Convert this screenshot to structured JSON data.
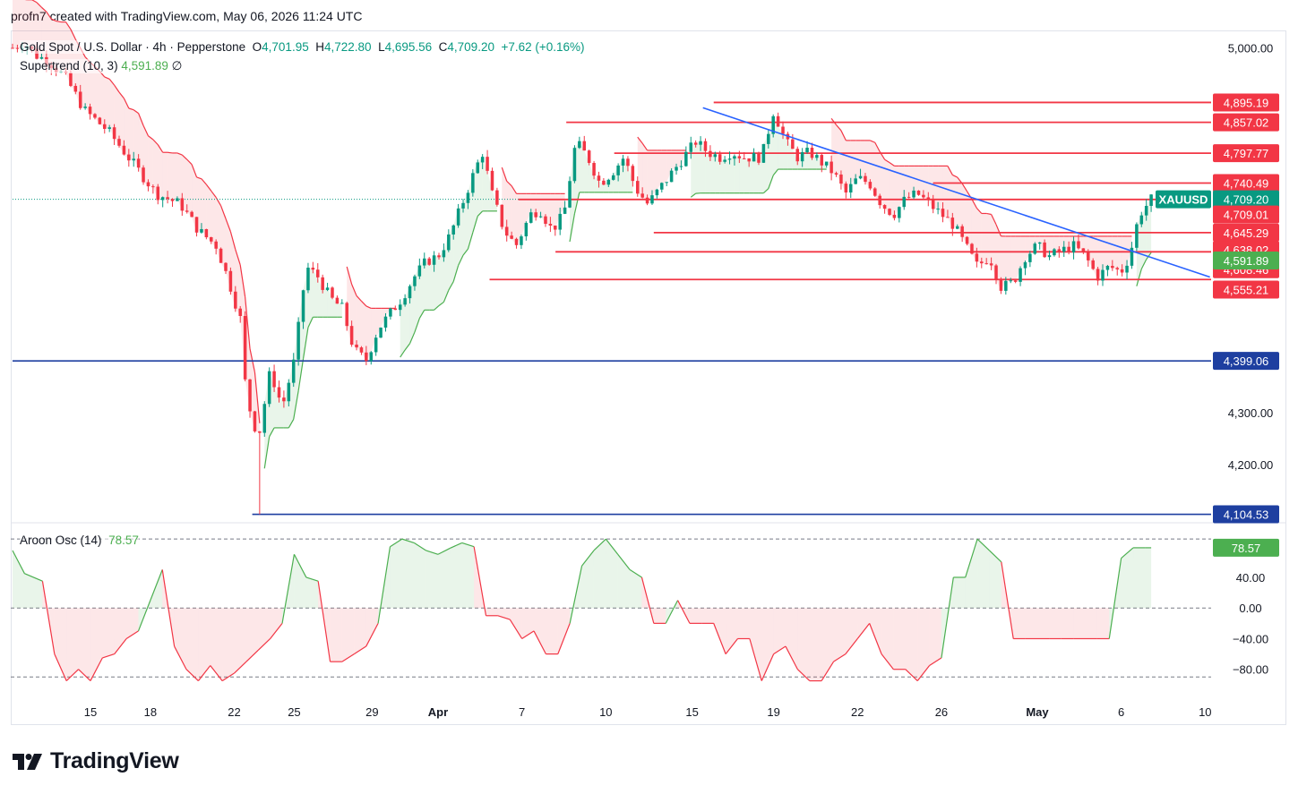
{
  "credit_line": "profn7 created with TradingView.com, May 06, 2026 11:24 UTC",
  "brand": "TradingView",
  "colors": {
    "up": "#089981",
    "down": "#f23645",
    "trendline": "#2962ff",
    "level_red": "#f23645",
    "level_blue": "#1e3fa0",
    "supertrend_up": "#4caf50",
    "supertrend_down": "#f23645",
    "aroon_pos": "#4caf50",
    "aroon_neg": "#f23645"
  },
  "chart_data": [
    {
      "type": "candlestick",
      "symbol_line": {
        "symbol": "Gold Spot / U.S. Dollar · 4h · Pepperstone",
        "o_label": "O",
        "o": "4,701.95",
        "h_label": "H",
        "h": "4,722.80",
        "l_label": "L",
        "l": "4,695.56",
        "c_label": "C",
        "c": "4,709.20",
        "change": "+7.62 (+0.16%)"
      },
      "indicator_line": {
        "name": "Supertrend (10, 3)",
        "value": "4,591.89",
        "extra": "∅"
      },
      "ylim": [
        4090,
        5030
      ],
      "y_ticks": [
        "4,200.00",
        "4,300.00",
        "5,000.00"
      ],
      "x_ticks": [
        "15",
        "18",
        "22",
        "25",
        "29",
        "Apr",
        "7",
        "10",
        "15",
        "19",
        "22",
        "26",
        "May",
        "6",
        "10"
      ],
      "price_badges": [
        {
          "label": "4,895.19",
          "value": 4895.19,
          "kind": "red"
        },
        {
          "label": "4,857.02",
          "value": 4857.02,
          "kind": "red"
        },
        {
          "label": "4,797.77",
          "value": 4797.77,
          "kind": "red"
        },
        {
          "label": "4,740.49",
          "value": 4740.49,
          "kind": "red"
        },
        {
          "label": "XAUUSD",
          "value": 4709.2,
          "kind": "symbol"
        },
        {
          "label": "4,709.20",
          "value": 4709.2,
          "kind": "last"
        },
        {
          "label": "4,709.01",
          "value": 4680.0,
          "kind": "red"
        },
        {
          "label": "4,645.29",
          "value": 4645.29,
          "kind": "red"
        },
        {
          "label": "4,638.02",
          "value": 4612.0,
          "kind": "red"
        },
        {
          "label": "4,608.46",
          "value": 4575.0,
          "kind": "red"
        },
        {
          "label": "4,591.89",
          "value": 4591.89,
          "kind": "green"
        },
        {
          "label": "4,555.21",
          "value": 4536.0,
          "kind": "red"
        },
        {
          "label": "4,399.06",
          "value": 4399.06,
          "kind": "blue"
        },
        {
          "label": "4,104.53",
          "value": 4104.53,
          "kind": "blue"
        }
      ],
      "horizontal_levels": [
        {
          "value": 4895.19,
          "from": 0.585,
          "color": "red"
        },
        {
          "value": 4857.02,
          "from": 0.462,
          "color": "red"
        },
        {
          "value": 4797.77,
          "from": 0.502,
          "color": "red"
        },
        {
          "value": 4740.49,
          "from": 0.768,
          "color": "red"
        },
        {
          "value": 4709.01,
          "from": 0.422,
          "color": "red"
        },
        {
          "value": 4645.29,
          "from": 0.535,
          "color": "red"
        },
        {
          "value": 4608.46,
          "from": 0.453,
          "color": "red"
        },
        {
          "value": 4555.21,
          "from": 0.398,
          "color": "red"
        },
        {
          "value": 4399.06,
          "from": 0.0,
          "color": "blue"
        },
        {
          "value": 4104.53,
          "from": 0.2,
          "color": "blue"
        }
      ],
      "trendline": {
        "x1": 0.576,
        "y1": 4885,
        "x2": 0.999,
        "y2": 4560
      },
      "series": [
        {
          "name": "close_path",
          "points": [
            [
              0,
              5000
            ],
            [
              0.01,
              5010
            ],
            [
              0.02,
              4985
            ],
            [
              0.03,
              4975
            ],
            [
              0.045,
              4940
            ],
            [
              0.06,
              4880
            ],
            [
              0.08,
              4840
            ],
            [
              0.1,
              4780
            ],
            [
              0.12,
              4720
            ],
            [
              0.14,
              4700
            ],
            [
              0.155,
              4650
            ],
            [
              0.17,
              4620
            ],
            [
              0.18,
              4555
            ],
            [
              0.19,
              4480
            ],
            [
              0.195,
              4330
            ],
            [
              0.205,
              4250
            ],
            [
              0.215,
              4380
            ],
            [
              0.225,
              4310
            ],
            [
              0.235,
              4400
            ],
            [
              0.245,
              4580
            ],
            [
              0.255,
              4560
            ],
            [
              0.265,
              4520
            ],
            [
              0.275,
              4500
            ],
            [
              0.285,
              4420
            ],
            [
              0.295,
              4400
            ],
            [
              0.305,
              4460
            ],
            [
              0.315,
              4490
            ],
            [
              0.325,
              4520
            ],
            [
              0.335,
              4560
            ],
            [
              0.345,
              4590
            ],
            [
              0.355,
              4600
            ],
            [
              0.365,
              4640
            ],
            [
              0.375,
              4700
            ],
            [
              0.385,
              4760
            ],
            [
              0.392,
              4800
            ],
            [
              0.4,
              4720
            ],
            [
              0.41,
              4650
            ],
            [
              0.42,
              4620
            ],
            [
              0.432,
              4680
            ],
            [
              0.44,
              4690
            ],
            [
              0.45,
              4650
            ],
            [
              0.46,
              4680
            ],
            [
              0.47,
              4820
            ],
            [
              0.48,
              4790
            ],
            [
              0.49,
              4740
            ],
            [
              0.5,
              4760
            ],
            [
              0.51,
              4790
            ],
            [
              0.52,
              4730
            ],
            [
              0.53,
              4700
            ],
            [
              0.54,
              4730
            ],
            [
              0.55,
              4760
            ],
            [
              0.56,
              4790
            ],
            [
              0.57,
              4820
            ],
            [
              0.58,
              4800
            ],
            [
              0.59,
              4790
            ],
            [
              0.6,
              4800
            ],
            [
              0.61,
              4790
            ],
            [
              0.625,
              4790
            ],
            [
              0.635,
              4880
            ],
            [
              0.645,
              4820
            ],
            [
              0.655,
              4790
            ],
            [
              0.665,
              4800
            ],
            [
              0.675,
              4780
            ],
            [
              0.685,
              4760
            ],
            [
              0.695,
              4720
            ],
            [
              0.705,
              4750
            ],
            [
              0.715,
              4740
            ],
            [
              0.725,
              4700
            ],
            [
              0.735,
              4680
            ],
            [
              0.745,
              4710
            ],
            [
              0.755,
              4720
            ],
            [
              0.765,
              4700
            ],
            [
              0.775,
              4680
            ],
            [
              0.785,
              4660
            ],
            [
              0.795,
              4620
            ],
            [
              0.805,
              4580
            ],
            [
              0.815,
              4600
            ],
            [
              0.825,
              4540
            ],
            [
              0.835,
              4550
            ],
            [
              0.845,
              4600
            ],
            [
              0.855,
              4620
            ],
            [
              0.865,
              4600
            ],
            [
              0.875,
              4610
            ],
            [
              0.885,
              4620
            ],
            [
              0.895,
              4600
            ],
            [
              0.905,
              4560
            ],
            [
              0.915,
              4580
            ],
            [
              0.925,
              4570
            ],
            [
              0.932,
              4600
            ],
            [
              0.94,
              4680
            ],
            [
              0.95,
              4709
            ]
          ]
        }
      ]
    },
    {
      "type": "area",
      "name": "Aroon Osc (14)",
      "value_label": "78.57",
      "ylim": [
        -120,
        110
      ],
      "y_ticks": [
        "40.00",
        "0.00",
        "−40.00",
        "−80.00"
      ],
      "band_lines": [
        90,
        0,
        -90
      ],
      "series": [
        {
          "name": "Aroon Osc (14)",
          "x": [
            0,
            0.01,
            0.025,
            0.035,
            0.045,
            0.055,
            0.065,
            0.075,
            0.085,
            0.095,
            0.105,
            0.115,
            0.125,
            0.135,
            0.145,
            0.155,
            0.165,
            0.175,
            0.185,
            0.195,
            0.205,
            0.215,
            0.225,
            0.235,
            0.245,
            0.255,
            0.265,
            0.275,
            0.285,
            0.295,
            0.305,
            0.315,
            0.325,
            0.335,
            0.345,
            0.355,
            0.365,
            0.375,
            0.385,
            0.395,
            0.405,
            0.415,
            0.425,
            0.435,
            0.445,
            0.455,
            0.465,
            0.475,
            0.485,
            0.495,
            0.505,
            0.515,
            0.525,
            0.535,
            0.545,
            0.555,
            0.565,
            0.575,
            0.585,
            0.595,
            0.605,
            0.615,
            0.625,
            0.635,
            0.645,
            0.655,
            0.665,
            0.675,
            0.685,
            0.695,
            0.705,
            0.715,
            0.725,
            0.735,
            0.745,
            0.755,
            0.765,
            0.775,
            0.785,
            0.795,
            0.805,
            0.815,
            0.825,
            0.835,
            0.845,
            0.855,
            0.865,
            0.875,
            0.885,
            0.895,
            0.905,
            0.915,
            0.925,
            0.935,
            0.945,
            0.95
          ],
          "values": [
            75,
            45,
            35,
            -60,
            -95,
            -80,
            -95,
            -65,
            -60,
            -40,
            -30,
            10,
            50,
            -50,
            -80,
            -95,
            -75,
            -95,
            -85,
            -70,
            -55,
            -40,
            -20,
            70,
            40,
            35,
            -70,
            -70,
            -60,
            -50,
            -20,
            80,
            90,
            85,
            75,
            70,
            78,
            85,
            80,
            -10,
            -10,
            -15,
            -40,
            -30,
            -60,
            -60,
            -20,
            55,
            75,
            90,
            70,
            50,
            40,
            -20,
            -20,
            10,
            -20,
            -20,
            -20,
            -60,
            -40,
            -40,
            -95,
            -60,
            -50,
            -80,
            -95,
            -95,
            -70,
            -60,
            -40,
            -20,
            -60,
            -80,
            -80,
            -95,
            -75,
            -65,
            40,
            40,
            90,
            75,
            60,
            -40,
            -40,
            -40,
            -40,
            -40,
            -40,
            -40,
            -40,
            -40,
            65,
            78.57,
            78.57,
            78.57
          ]
        }
      ]
    }
  ]
}
